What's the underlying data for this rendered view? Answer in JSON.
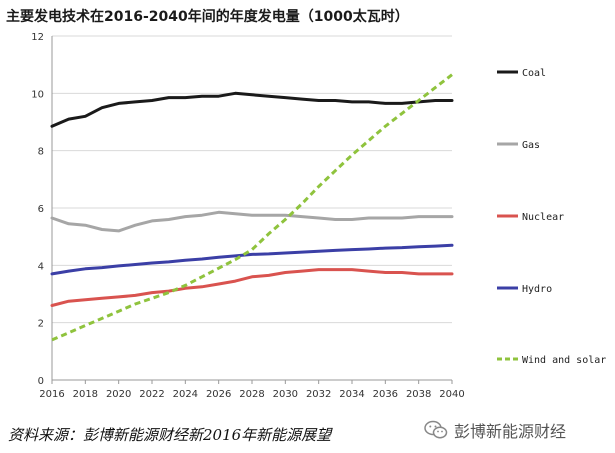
{
  "title": "主要发电技术在2016-2040年间的年度发电量（1000太瓦时）",
  "source": "资料来源：彭博新能源财经新2016年新能源展望",
  "brand": {
    "name": "彭博新能源财经",
    "icon": "wechat-icon"
  },
  "chart_data": {
    "type": "line",
    "x": [
      2016,
      2017,
      2018,
      2019,
      2020,
      2021,
      2022,
      2023,
      2024,
      2025,
      2026,
      2027,
      2028,
      2029,
      2030,
      2031,
      2032,
      2033,
      2034,
      2035,
      2036,
      2037,
      2038,
      2039,
      2040
    ],
    "xticks": [
      "2016",
      "2018",
      "2020",
      "2022",
      "2024",
      "2026",
      "2028",
      "2030",
      "2032",
      "2034",
      "2036",
      "2038",
      "2040"
    ],
    "yticks": [
      "0",
      "2",
      "4",
      "6",
      "8",
      "10",
      "12"
    ],
    "xlim": [
      2016,
      2040
    ],
    "ylim": [
      0,
      12
    ],
    "grid": "horizontal",
    "legend_position": "right",
    "series": [
      {
        "name": "Coal",
        "color": "#1a1a1a",
        "style": "solid",
        "values": [
          8.85,
          9.1,
          9.2,
          9.5,
          9.65,
          9.7,
          9.75,
          9.85,
          9.85,
          9.9,
          9.9,
          10.0,
          9.95,
          9.9,
          9.85,
          9.8,
          9.75,
          9.75,
          9.7,
          9.7,
          9.65,
          9.65,
          9.7,
          9.75,
          9.75
        ]
      },
      {
        "name": "Gas",
        "color": "#a6a6a6",
        "style": "solid",
        "values": [
          5.65,
          5.45,
          5.4,
          5.25,
          5.2,
          5.4,
          5.55,
          5.6,
          5.7,
          5.75,
          5.85,
          5.8,
          5.75,
          5.75,
          5.75,
          5.7,
          5.65,
          5.6,
          5.6,
          5.65,
          5.65,
          5.65,
          5.7,
          5.7,
          5.7
        ]
      },
      {
        "name": "Nuclear",
        "color": "#d9534f",
        "style": "solid",
        "values": [
          2.6,
          2.75,
          2.8,
          2.85,
          2.9,
          2.95,
          3.05,
          3.1,
          3.2,
          3.25,
          3.35,
          3.45,
          3.6,
          3.65,
          3.75,
          3.8,
          3.85,
          3.85,
          3.85,
          3.8,
          3.75,
          3.75,
          3.7,
          3.7,
          3.7
        ]
      },
      {
        "name": "Hydro",
        "color": "#3b3fa6",
        "style": "solid",
        "values": [
          3.7,
          3.8,
          3.88,
          3.92,
          3.98,
          4.03,
          4.08,
          4.12,
          4.18,
          4.22,
          4.28,
          4.33,
          4.38,
          4.4,
          4.43,
          4.46,
          4.49,
          4.52,
          4.55,
          4.57,
          4.6,
          4.62,
          4.65,
          4.67,
          4.7
        ]
      },
      {
        "name": "Wind and solar",
        "color": "#8fc33d",
        "style": "dashed",
        "values": [
          1.4,
          1.65,
          1.9,
          2.15,
          2.4,
          2.65,
          2.85,
          3.05,
          3.3,
          3.6,
          3.9,
          4.2,
          4.55,
          5.1,
          5.6,
          6.15,
          6.75,
          7.3,
          7.85,
          8.35,
          8.85,
          9.3,
          9.75,
          10.2,
          10.65
        ]
      }
    ]
  }
}
